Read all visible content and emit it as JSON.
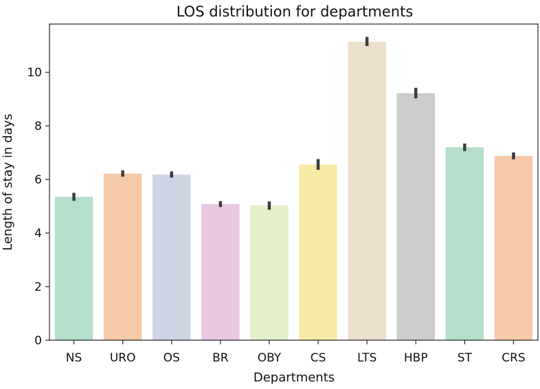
{
  "chart_data": {
    "type": "bar",
    "title": "LOS distribution for departments",
    "xlabel": "Departments",
    "ylabel": "Length of stay in days",
    "ylim": [
      0,
      11.8
    ],
    "yticks": [
      0,
      2,
      4,
      6,
      8,
      10
    ],
    "grid": false,
    "categories": [
      "NS",
      "URO",
      "OS",
      "BR",
      "OBY",
      "CS",
      "LTS",
      "HBP",
      "ST",
      "CRS"
    ],
    "values": [
      5.35,
      6.22,
      6.18,
      5.08,
      5.03,
      6.56,
      11.14,
      9.22,
      7.2,
      6.88
    ],
    "error_bars": [
      [
        5.2,
        5.5
      ],
      [
        6.1,
        6.34
      ],
      [
        6.07,
        6.3
      ],
      [
        4.97,
        5.19
      ],
      [
        4.87,
        5.18
      ],
      [
        6.36,
        6.76
      ],
      [
        10.98,
        11.32
      ],
      [
        9.03,
        9.42
      ],
      [
        7.06,
        7.34
      ],
      [
        6.75,
        7.01
      ]
    ],
    "colors": [
      "#b3dfcb",
      "#f6c9a9",
      "#cdd5e4",
      "#e9c6e1",
      "#e3f0c9",
      "#f6eaa7",
      "#ecdfcb",
      "#cccccc",
      "#b3dfcb",
      "#f6c9a9"
    ]
  }
}
